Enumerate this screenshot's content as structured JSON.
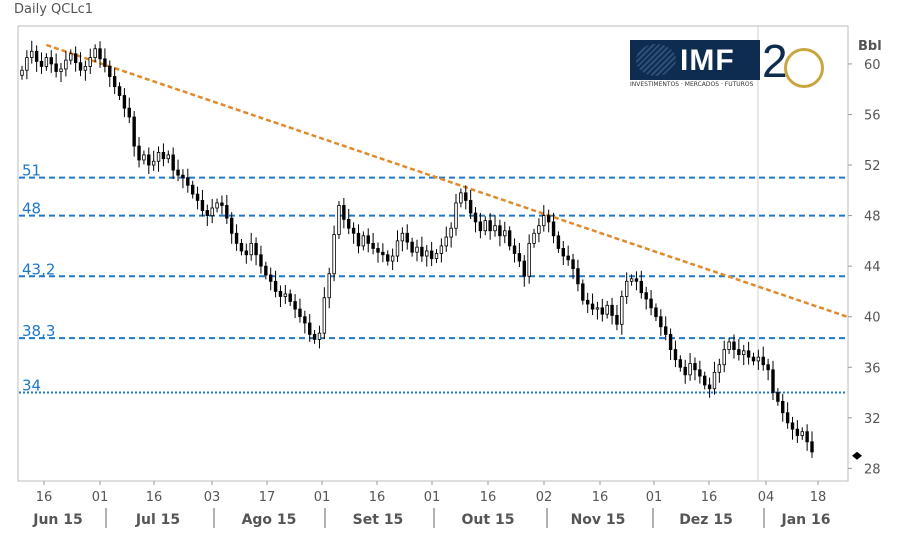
{
  "title": "Daily QCLc1",
  "logo": {
    "text": "IMF",
    "subtitle": "INVESTIMENTOS · MERCADOS · FUTUROS",
    "anniversary": "2"
  },
  "colors": {
    "candle": "#000000",
    "level_line": "#1f78c8",
    "level_label": "#1f78c8",
    "trend_line": "#e08a2c",
    "axis_text": "#555555",
    "grid": "#cccccc"
  },
  "chart_data": {
    "type": "candlestick",
    "title": "Daily QCLc1",
    "ylabel": "Bbl",
    "ylim": [
      27,
      63
    ],
    "yticks": [
      60,
      56,
      52,
      48,
      44,
      40,
      36,
      32,
      28
    ],
    "x_day_ticks": [
      "16",
      "01",
      "16",
      "03",
      "17",
      "01",
      "16",
      "01",
      "16",
      "02",
      "16",
      "01",
      "16",
      "04",
      "18"
    ],
    "x_month_labels": [
      "Jun 15",
      "Jul 15",
      "Ago 15",
      "Set 15",
      "Out 15",
      "Nov 15",
      "Dez 15",
      "Jan 16"
    ],
    "levels": [
      {
        "label": "51",
        "value": 51.0,
        "style": "dashed"
      },
      {
        "label": "48",
        "value": 48.0,
        "style": "dashed"
      },
      {
        "label": "43,2",
        "value": 43.2,
        "style": "dashed"
      },
      {
        "label": "38,3",
        "value": 38.3,
        "style": "dashed"
      },
      {
        "label": "34",
        "value": 34.0,
        "style": "dotted"
      }
    ],
    "trendline": {
      "from": {
        "day": 5,
        "value": 61.5
      },
      "to": {
        "day": 170,
        "value": 40.0
      }
    },
    "last_price_marker": 29.0,
    "closes": [
      59.5,
      60.5,
      61.0,
      60.2,
      59.8,
      60.5,
      60.0,
      59.4,
      59.6,
      60.3,
      60.8,
      60.1,
      59.5,
      59.8,
      60.5,
      61.2,
      60.4,
      59.8,
      59.0,
      58.2,
      57.5,
      56.5,
      55.8,
      53.5,
      52.4,
      52.8,
      52.0,
      52.3,
      53.0,
      52.5,
      52.8,
      51.6,
      51.2,
      51.0,
      50.4,
      49.7,
      49.2,
      48.4,
      48.0,
      48.6,
      49.0,
      48.8,
      47.8,
      46.6,
      45.8,
      45.2,
      44.9,
      45.8,
      44.9,
      44.0,
      43.3,
      42.8,
      42.0,
      41.6,
      41.8,
      41.2,
      40.6,
      40.0,
      39.5,
      38.6,
      38.2,
      38.7,
      41.5,
      43.4,
      46.5,
      48.8,
      47.7,
      47.0,
      46.6,
      45.6,
      46.4,
      45.8,
      45.4,
      45.1,
      44.9,
      44.4,
      44.8,
      46.0,
      46.6,
      45.9,
      45.1,
      45.5,
      44.8,
      45.2,
      44.6,
      45.0,
      45.6,
      46.3,
      47.0,
      49.0,
      49.8,
      49.2,
      48.2,
      47.5,
      46.8,
      47.6,
      46.8,
      47.2,
      46.4,
      46.8,
      45.6,
      45.0,
      44.4,
      43.2,
      45.8,
      46.6,
      47.2,
      48.0,
      47.5,
      46.4,
      45.4,
      44.8,
      44.5,
      43.8,
      42.6,
      41.3,
      41.0,
      40.6,
      40.7,
      40.2,
      40.9,
      40.1,
      39.4,
      41.6,
      42.8,
      43.0,
      42.8,
      41.9,
      41.4,
      40.7,
      40.0,
      39.2,
      38.6,
      37.4,
      36.6,
      36.0,
      35.4,
      36.3,
      35.8,
      35.3,
      34.6,
      34.3,
      35.6,
      36.2,
      37.4,
      38.0,
      37.4,
      37.0,
      37.3,
      36.8,
      36.5,
      36.8,
      36.2,
      35.8,
      34.0,
      33.3,
      32.4,
      31.6,
      31.1,
      30.6,
      30.9,
      30.1,
      29.3
    ]
  }
}
